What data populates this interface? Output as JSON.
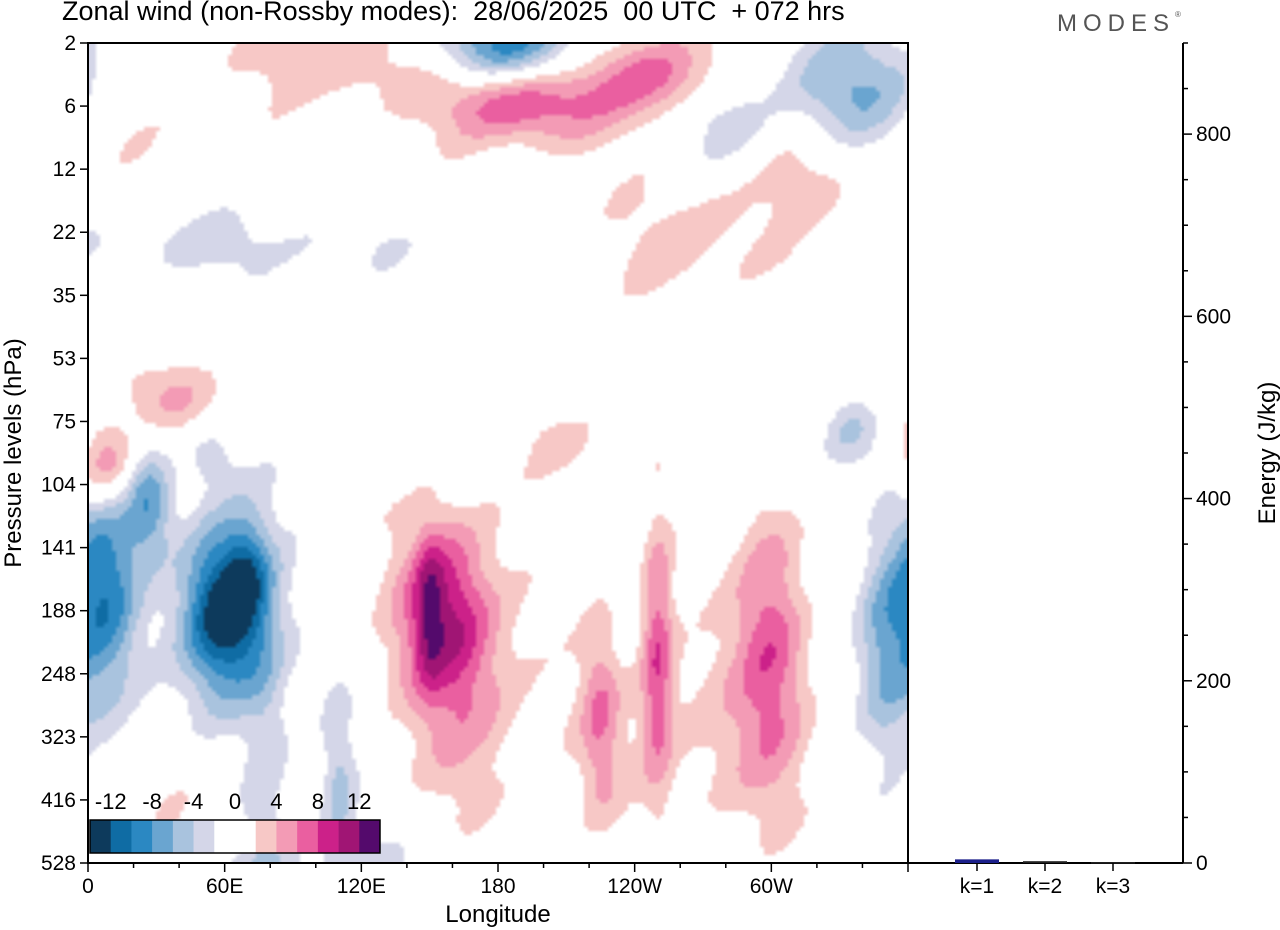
{
  "header": {
    "title": "Zonal wind (non-Rossby modes):  28/06/2025  00 UTC  + 072 hrs",
    "brand": "MODES",
    "brand_mark": "®"
  },
  "colors": {
    "levels": [
      "#0d3a5c",
      "#0f6ca4",
      "#2b88c2",
      "#6aa5d0",
      "#a9c3de",
      "#d4d6e8",
      "#ffffff",
      "#ffffff",
      "#f7c8c6",
      "#f39bb5",
      "#ea5fa0",
      "#cc2189",
      "#a01574",
      "#540a6c"
    ]
  },
  "chart_data": [
    {
      "type": "heatmap",
      "xlabel": "Longitude",
      "ylabel": "Pressure levels (hPa)",
      "x_ticks": [
        "0",
        "60E",
        "120E",
        "180",
        "120W",
        "60W"
      ],
      "x_tick_values": [
        0,
        60,
        120,
        180,
        240,
        300
      ],
      "xlim": [
        0,
        360
      ],
      "y_ticks": [
        "2",
        "6",
        "12",
        "22",
        "35",
        "53",
        "75",
        "104",
        "141",
        "188",
        "248",
        "323",
        "416",
        "528"
      ],
      "colorbar": {
        "tick_labels": [
          "-12",
          "-8",
          "-4",
          "0",
          "4",
          "8",
          "12"
        ],
        "bounds": [
          -14,
          -12,
          -10,
          -8,
          -6,
          -4,
          -2,
          0,
          2,
          4,
          6,
          8,
          10,
          12,
          14
        ]
      },
      "blobs": [
        {
          "lon": 60,
          "lev": 9.0,
          "slon": 13,
          "slev": 1.0,
          "amp": -15
        },
        {
          "lon": 70,
          "lev": 8.4,
          "slon": 6,
          "slev": 0.6,
          "amp": -4
        },
        {
          "lon": 8,
          "lev": 8.7,
          "slon": 10,
          "slev": 1.4,
          "amp": -9
        },
        {
          "lon": 27,
          "lev": 7.3,
          "slon": 7,
          "slev": 0.6,
          "amp": -7
        },
        {
          "lon": 54,
          "lev": 6.6,
          "slon": 8,
          "slev": 0.35,
          "amp": -3
        },
        {
          "lon": 78,
          "lev": 11.3,
          "slon": 8,
          "slev": 2.3,
          "amp": -3.5
        },
        {
          "lon": 110,
          "lev": 11.7,
          "slon": 5,
          "slev": 1.0,
          "amp": -4
        },
        {
          "lon": 350,
          "lev": 9.5,
          "slon": 9,
          "slev": 1.3,
          "amp": -7
        },
        {
          "lon": 335,
          "lev": 6.0,
          "slon": 10,
          "slev": 0.55,
          "amp": -6
        },
        {
          "lon": 185,
          "lev": 0.1,
          "slon": 24,
          "slev": 0.45,
          "amp": -10
        },
        {
          "lon": 340,
          "lev": 0.8,
          "slon": 24,
          "slev": 0.7,
          "amp": -7
        },
        {
          "lon": 280,
          "lev": 1.2,
          "slon": 14,
          "slev": 0.55,
          "amp": -4
        },
        {
          "lon": 60,
          "lev": 3.2,
          "slon": 60,
          "slev": 0.4,
          "amp": -2.5
        },
        {
          "lon": 90,
          "lev": 13.3,
          "slon": 90,
          "slev": 0.6,
          "amp": -2.3
        },
        {
          "lon": 155,
          "lev": 9.0,
          "slon": 14,
          "slev": 1.1,
          "amp": 9
        },
        {
          "lon": 150,
          "lev": 9.0,
          "slon": 4,
          "slev": 0.8,
          "amp": 4
        },
        {
          "lon": 170,
          "lev": 10.3,
          "slon": 16,
          "slev": 1.6,
          "amp": 4
        },
        {
          "lon": 250,
          "lev": 9.6,
          "slon": 5,
          "slev": 1.5,
          "amp": 7
        },
        {
          "lon": 300,
          "lev": 9.3,
          "slon": 11,
          "slev": 1.6,
          "amp": 6.5
        },
        {
          "lon": 225,
          "lev": 10.6,
          "slon": 6,
          "slev": 1.1,
          "amp": 4.5
        },
        {
          "lon": 270,
          "lev": 11.0,
          "slon": 40,
          "slev": 1.3,
          "amp": 2.5
        },
        {
          "lon": 8,
          "lev": 6.7,
          "slon": 9,
          "slev": 0.5,
          "amp": 8
        },
        {
          "lon": 35,
          "lev": 5.6,
          "slon": 18,
          "slev": 0.4,
          "amp": 3.5
        },
        {
          "lon": 190,
          "lev": 0.9,
          "slon": 26,
          "slev": 0.5,
          "amp": 9
        },
        {
          "lon": 250,
          "lev": 0.5,
          "slon": 22,
          "slev": 0.5,
          "amp": 7
        },
        {
          "lon": 110,
          "lev": 0.3,
          "slon": 28,
          "slev": 0.5,
          "amp": 4
        },
        {
          "lon": 270,
          "lev": 3.1,
          "slon": 28,
          "slev": 0.8,
          "amp": 3.2
        },
        {
          "lon": 320,
          "lev": 2.0,
          "slon": 16,
          "slev": 0.6,
          "amp": 3
        },
        {
          "lon": 340,
          "lev": 5.5,
          "slon": 20,
          "slev": 0.5,
          "amp": 3
        },
        {
          "lon": 210,
          "lev": 6.3,
          "slon": 14,
          "slev": 0.45,
          "amp": 2.8
        },
        {
          "lon": 40,
          "lev": 12.4,
          "slon": 12,
          "slev": 0.9,
          "amp": 2.6
        },
        {
          "lon": 15,
          "lev": 1.3,
          "slon": 30,
          "slev": 0.6,
          "amp": 2.4
        }
      ]
    },
    {
      "type": "bar",
      "ylabel": "Energy (J/kg)",
      "categories": [
        "k=1",
        "k=2",
        "k=3"
      ],
      "values": [
        4,
        2,
        1
      ],
      "ylim": [
        0,
        900
      ],
      "y_ticks": [
        0,
        200,
        400,
        600,
        800
      ]
    }
  ]
}
